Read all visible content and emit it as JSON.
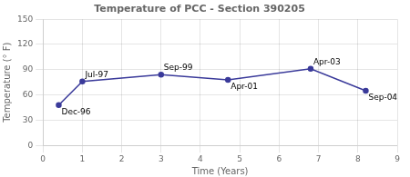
{
  "chart_data": {
    "type": "line",
    "title": "Temperature of PCC - Section 390205",
    "xlabel": "Time (Years)",
    "ylabel": "Temperature (° F)",
    "x": [
      0.4,
      1.0,
      3.0,
      4.7,
      6.8,
      8.2
    ],
    "values": [
      48,
      76,
      84,
      78,
      91,
      65
    ],
    "annotations": [
      {
        "text": "Dec-96",
        "x": 0.4,
        "y": 48
      },
      {
        "text": "Jul-97",
        "x": 1.0,
        "y": 76
      },
      {
        "text": "Sep-99",
        "x": 3.0,
        "y": 84
      },
      {
        "text": "Apr-01",
        "x": 4.7,
        "y": 78
      },
      {
        "text": "Apr-03",
        "x": 6.8,
        "y": 91
      },
      {
        "text": "Sep-04",
        "x": 8.2,
        "y": 65
      }
    ],
    "xlim": [
      0,
      9
    ],
    "ylim": [
      0,
      150
    ],
    "xticks": [
      0,
      1,
      2,
      3,
      4,
      5,
      6,
      7,
      8,
      9
    ],
    "yticks": [
      0,
      30,
      60,
      90,
      120,
      150
    ],
    "color": "#3a3a9a",
    "marker": "circle",
    "grid": true
  }
}
